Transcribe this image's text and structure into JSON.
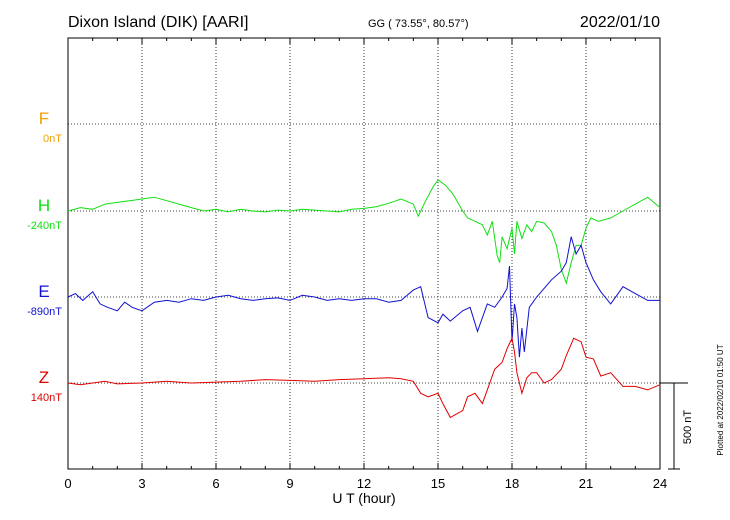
{
  "header": {
    "station": "Dixon Island (DIK)  [AARI]",
    "coords": "GG ( 73.55°,  80.57°)",
    "date": "2022/01/10"
  },
  "footer": {
    "plotted": "Plotted at 2022/02/10 01:50 UT"
  },
  "chart_data": {
    "type": "line",
    "xlabel": "U T (hour)",
    "xlim": [
      0,
      24
    ],
    "xticks": [
      0,
      3,
      6,
      9,
      12,
      15,
      18,
      21,
      24
    ],
    "grid": true,
    "scale_bar": {
      "label": "500 nT",
      "value": 500
    },
    "series": [
      {
        "name": "F",
        "baseline_label": "0nT",
        "color": "#f0a000",
        "x": [],
        "y": []
      },
      {
        "name": "H",
        "baseline_label": "-240nT",
        "color": "#10e010",
        "x": [
          0,
          0.5,
          1,
          1.5,
          2,
          2.5,
          3,
          3.5,
          4,
          4.5,
          5,
          5.5,
          6,
          6.5,
          7,
          7.5,
          8,
          8.5,
          9,
          9.5,
          10,
          10.5,
          11,
          11.5,
          12,
          12.5,
          13,
          13.5,
          14,
          14.2,
          14.5,
          14.8,
          15,
          15.3,
          15.6,
          16,
          16.2,
          16.5,
          16.8,
          17,
          17.2,
          17.4,
          17.5,
          17.6,
          17.8,
          18,
          18.1,
          18.2,
          18.4,
          18.6,
          18.8,
          19,
          19.3,
          19.6,
          19.8,
          20,
          20.2,
          20.4,
          20.6,
          20.8,
          21,
          21.2,
          21.5,
          22,
          22.5,
          23,
          23.5,
          24
        ],
        "y": [
          0,
          20,
          10,
          40,
          50,
          60,
          70,
          80,
          60,
          40,
          20,
          0,
          10,
          -5,
          10,
          0,
          -5,
          5,
          0,
          10,
          5,
          0,
          -5,
          10,
          15,
          25,
          45,
          70,
          40,
          -30,
          60,
          140,
          180,
          150,
          100,
          0,
          -40,
          -60,
          -80,
          -140,
          -60,
          -260,
          -300,
          -150,
          -220,
          -100,
          -250,
          -60,
          -160,
          -80,
          -120,
          -60,
          -70,
          -120,
          -200,
          -340,
          -420,
          -300,
          -200,
          -200,
          -100,
          -40,
          -60,
          -40,
          0,
          40,
          80,
          20
        ]
      },
      {
        "name": "E",
        "baseline_label": "-890nT",
        "color": "#1010d0",
        "x": [
          0,
          0.3,
          0.6,
          1,
          1.3,
          1.6,
          2,
          2.3,
          2.6,
          3,
          3.5,
          4,
          4.5,
          5,
          5.5,
          6,
          6.5,
          7,
          7.5,
          8,
          8.5,
          9,
          9.5,
          10,
          10.5,
          11,
          11.5,
          12,
          12.5,
          13,
          13.5,
          14,
          14.3,
          14.6,
          15,
          15.2,
          15.5,
          16,
          16.3,
          16.6,
          17,
          17.3,
          17.6,
          17.8,
          17.9,
          18,
          18.1,
          18.2,
          18.3,
          18.4,
          18.5,
          18.7,
          19,
          19.3,
          19.6,
          20,
          20.2,
          20.4,
          20.6,
          20.8,
          21,
          21.3,
          21.6,
          22,
          22.5,
          23,
          23.5,
          24
        ],
        "y": [
          0,
          20,
          -20,
          30,
          -40,
          -60,
          -80,
          -30,
          -60,
          -80,
          -30,
          -20,
          -30,
          -10,
          -20,
          0,
          10,
          -10,
          -20,
          -10,
          -5,
          -20,
          10,
          0,
          -20,
          -10,
          -20,
          -10,
          -10,
          -30,
          -20,
          40,
          60,
          -120,
          -150,
          -100,
          -140,
          -80,
          -60,
          -200,
          -40,
          -60,
          0,
          50,
          180,
          -260,
          -40,
          -120,
          -350,
          -180,
          -320,
          -60,
          0,
          50,
          100,
          150,
          200,
          350,
          250,
          300,
          200,
          100,
          30,
          -40,
          60,
          20,
          -20,
          -20
        ]
      },
      {
        "name": "Z",
        "baseline_label": "140nT",
        "color": "#e00000",
        "x": [
          0,
          0.5,
          1,
          1.5,
          2,
          3,
          4,
          5,
          6,
          7,
          8,
          9,
          10,
          11,
          12,
          13,
          13.5,
          14,
          14.3,
          14.6,
          15,
          15.2,
          15.5,
          16,
          16.2,
          16.5,
          16.8,
          17,
          17.3,
          17.6,
          17.8,
          18,
          18.1,
          18.2,
          18.4,
          18.6,
          18.8,
          19,
          19.3,
          19.6,
          20,
          20.2,
          20.5,
          20.8,
          21,
          21.3,
          21.6,
          22,
          22.5,
          23,
          23.5,
          24
        ],
        "y": [
          0,
          -10,
          0,
          10,
          -5,
          0,
          10,
          0,
          5,
          10,
          20,
          15,
          10,
          20,
          25,
          30,
          25,
          10,
          -60,
          -80,
          -60,
          -120,
          -200,
          -160,
          -80,
          -60,
          -120,
          -40,
          80,
          120,
          200,
          260,
          180,
          60,
          -60,
          30,
          60,
          60,
          0,
          20,
          80,
          160,
          260,
          240,
          150,
          140,
          40,
          60,
          -20,
          -20,
          -40,
          -10
        ]
      }
    ]
  }
}
